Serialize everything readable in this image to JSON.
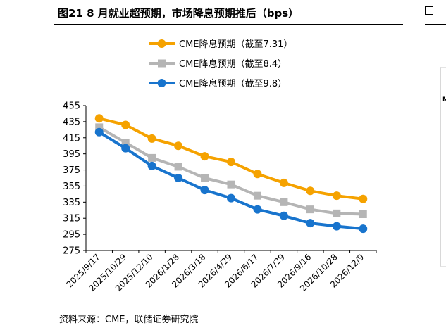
{
  "figure": {
    "title": "图21 8 月就业超预期，市场降息预期推后（bps）",
    "source": "资料来源：CME，联储证券研究院"
  },
  "colors": {
    "series_0": "#F5A200",
    "series_1": "#B5B5B5",
    "series_2": "#1874CD",
    "axis": "#000000"
  },
  "chart_data": {
    "type": "line",
    "title": "",
    "xlabel": "",
    "ylabel": "",
    "ylim": [
      275,
      455
    ],
    "yticks": [
      275,
      295,
      315,
      335,
      355,
      375,
      395,
      415,
      435,
      455
    ],
    "categories": [
      "2025/9/17",
      "2025/10/29",
      "2025/12/10",
      "2026/1/28",
      "2026/3/18",
      "2026/4/29",
      "2026/6/17",
      "2026/7/29",
      "2026/9/16",
      "2026/10/28",
      "2026/12/9"
    ],
    "grid": false,
    "legend_position": "top",
    "series": [
      {
        "name": "CME降息预期（截至7.31）",
        "marker": "circle",
        "values": [
          439,
          431,
          414,
          405,
          392,
          385,
          370,
          359,
          349,
          343,
          339
        ]
      },
      {
        "name": "CME降息预期（截至8.4）",
        "marker": "square",
        "values": [
          428,
          409,
          390,
          379,
          365,
          357,
          343,
          335,
          326,
          321,
          320
        ]
      },
      {
        "name": "CME降息预期（截至9.8）",
        "marker": "circle",
        "values": [
          422,
          402,
          380,
          365,
          350,
          340,
          326,
          318,
          309,
          305,
          302
        ]
      }
    ]
  }
}
